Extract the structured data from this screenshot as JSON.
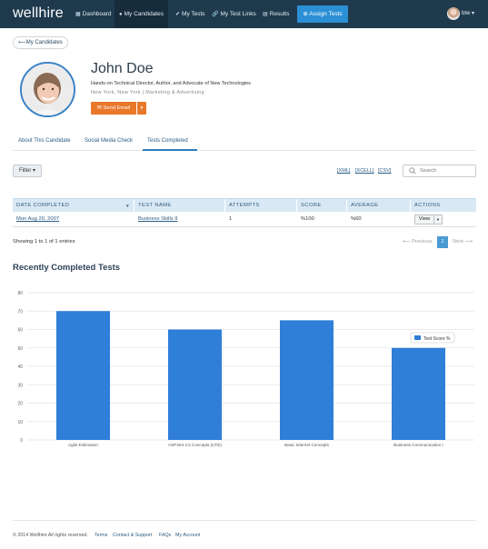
{
  "navbar": {
    "brand": "wellhire",
    "items": [
      {
        "label": "Dashboard",
        "icon": "grid-icon"
      },
      {
        "label": "My Candidates",
        "icon": "users-icon"
      },
      {
        "label": "My Tests",
        "icon": "check-icon"
      },
      {
        "label": "My Test Links",
        "icon": "link-icon"
      },
      {
        "label": "Results",
        "icon": "bar-chart-icon"
      }
    ],
    "assign_button": "Assign Tests",
    "user": "btw"
  },
  "back_button": "My Candidates",
  "profile": {
    "name": "John Doe",
    "tagline": "Hands-on Technical Director, Author, and Advocate of New Technologies",
    "location": "New York, New York | Marketing & Advertising",
    "send_email": "Send Email"
  },
  "tabs": [
    "About This Candidate",
    "Social Media Check",
    "Tests Completed"
  ],
  "active_tab": "Tests Completed",
  "toolbar": {
    "filter": "Filter",
    "exports": [
      "[XML]",
      "[XCELL]",
      "[CSV]"
    ],
    "search_placeholder": "Search"
  },
  "table": {
    "columns": [
      "DATE COMPLETED",
      "TEST NAME",
      "ATTEMPTS",
      "SCORE",
      "AVERAGE",
      "ACTIONS"
    ],
    "rows": [
      {
        "date": "Mon Aug 20, 2007",
        "test": "Business Skills II",
        "attempts": "1",
        "score": "%100",
        "average": "%60",
        "action": "View"
      }
    ]
  },
  "pagination": {
    "summary": "Showing 1 to 1 of 1 entries",
    "previous": "Previous",
    "page": "1",
    "next": "Next"
  },
  "chart_section_title": "Recently Completed Tests",
  "chart_data": {
    "type": "bar",
    "categories": [
      "Agile Estimation",
      "ASP.Net 2.0 Concepts (UTE)",
      "Basic Internet Concepts",
      "Business Communication I"
    ],
    "series": [
      {
        "name": "Test Score %",
        "values": [
          70,
          60,
          65,
          50
        ]
      }
    ],
    "ylim": [
      0,
      80
    ],
    "yticks": [
      0,
      10,
      20,
      30,
      40,
      50,
      60,
      70,
      80
    ],
    "grid": true,
    "legend": "right",
    "color": "#2f7ed8"
  },
  "footer": {
    "copyright": "© 2014 Wellhire All rights reserved.",
    "links": [
      "Terms",
      "Contact & Support",
      "FAQs",
      "My Account"
    ]
  }
}
